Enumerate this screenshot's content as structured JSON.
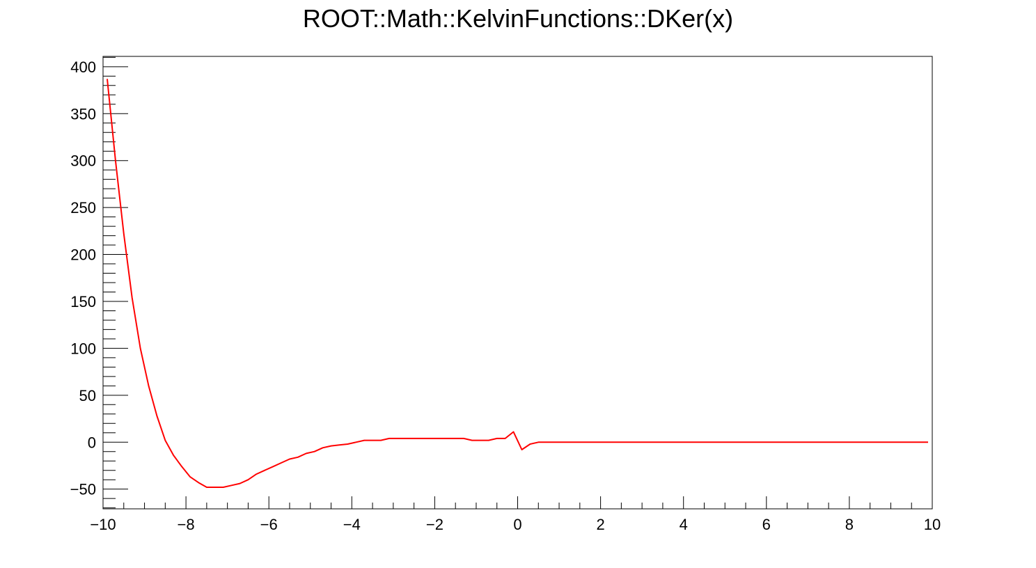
{
  "chart_data": {
    "type": "line",
    "title": "ROOT::Math::KelvinFunctions::DKer(x)",
    "xlabel": "",
    "ylabel": "",
    "xlim": [
      -10,
      10
    ],
    "ylim": [
      -71,
      411
    ],
    "grid": false,
    "legend": "none",
    "x_ticks": [
      -10,
      -8,
      -6,
      -4,
      -2,
      0,
      2,
      4,
      6,
      8,
      10
    ],
    "x_tick_labels": [
      "−10",
      "−8",
      "−6",
      "−4",
      "−2",
      "0",
      "2",
      "4",
      "6",
      "8",
      "10"
    ],
    "y_ticks": [
      -50,
      0,
      50,
      100,
      150,
      200,
      250,
      300,
      350,
      400
    ],
    "y_tick_labels": [
      "−50",
      "0",
      "50",
      "100",
      "150",
      "200",
      "250",
      "300",
      "350",
      "400"
    ],
    "series": [
      {
        "color": "#ff0000",
        "x": [
          -9.9,
          -9.7,
          -9.5,
          -9.3,
          -9.1,
          -8.9,
          -8.7,
          -8.5,
          -8.3,
          -8.1,
          -7.9,
          -7.7,
          -7.5,
          -7.3,
          -7.1,
          -6.9,
          -6.7,
          -6.5,
          -6.3,
          -6.1,
          -5.9,
          -5.7,
          -5.5,
          -5.3,
          -5.1,
          -4.9,
          -4.7,
          -4.5,
          -4.3,
          -4.1,
          -3.9,
          -3.7,
          -3.5,
          -3.3,
          -3.1,
          -2.9,
          -2.5,
          -2.0,
          -1.5,
          -1.3,
          -1.1,
          -0.9,
          -0.7,
          -0.5,
          -0.3,
          -0.1,
          0.1,
          0.3,
          0.5,
          1.0,
          2.0,
          4.0,
          6.0,
          8.0,
          9.9
        ],
        "y": [
          387,
          300,
          222,
          154,
          100,
          60,
          28,
          2,
          -14,
          -26,
          -37,
          -43,
          -48,
          -48,
          -48,
          -46,
          -44,
          -40,
          -34,
          -30,
          -26,
          -22,
          -18,
          -16,
          -12,
          -10,
          -6,
          -4,
          -3,
          -2,
          0,
          2,
          2,
          2,
          4,
          4,
          4,
          4,
          4,
          4,
          2,
          2,
          2,
          4,
          4,
          11,
          -8,
          -2,
          0,
          0,
          0,
          0,
          0,
          0,
          0
        ]
      }
    ]
  }
}
